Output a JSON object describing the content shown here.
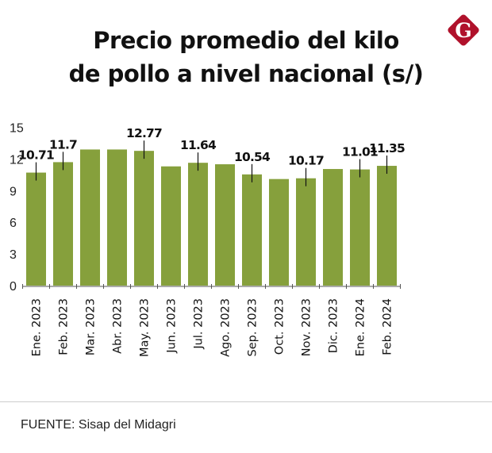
{
  "title_lines": [
    "Precio promedio del kilo",
    "de pollo a nivel nacional (s/)"
  ],
  "logo": {
    "letter": "G",
    "color": "#b0112b"
  },
  "source": "FUENTE: Sisap del Midagri",
  "chart_data": {
    "type": "bar",
    "title": "Precio promedio del kilo de pollo a nivel nacional (s/)",
    "categories": [
      "Ene. 2023",
      "Feb. 2023",
      "Mar. 2023",
      "Abr. 2023",
      "May. 2023",
      "Jun. 2023",
      "Jul. 2023",
      "Ago. 2023",
      "Sep. 2023",
      "Oct. 2023",
      "Nov. 2023",
      "Dic. 2023",
      "Ene. 2024",
      "Feb. 2024"
    ],
    "values": [
      10.71,
      11.7,
      12.9,
      12.9,
      12.77,
      11.3,
      11.64,
      11.5,
      10.54,
      10.1,
      10.17,
      11.05,
      11.01,
      11.35
    ],
    "data_labels": [
      "10.71",
      "11.7",
      "",
      "",
      "12.77",
      "",
      "11.64",
      "",
      "10.54",
      "",
      "10.17",
      "",
      "11.01",
      "11.35"
    ],
    "yticks": [
      0,
      3,
      6,
      9,
      12,
      15
    ],
    "ylim": [
      0,
      15
    ],
    "grid": false,
    "bar_color": "#86a03c"
  }
}
